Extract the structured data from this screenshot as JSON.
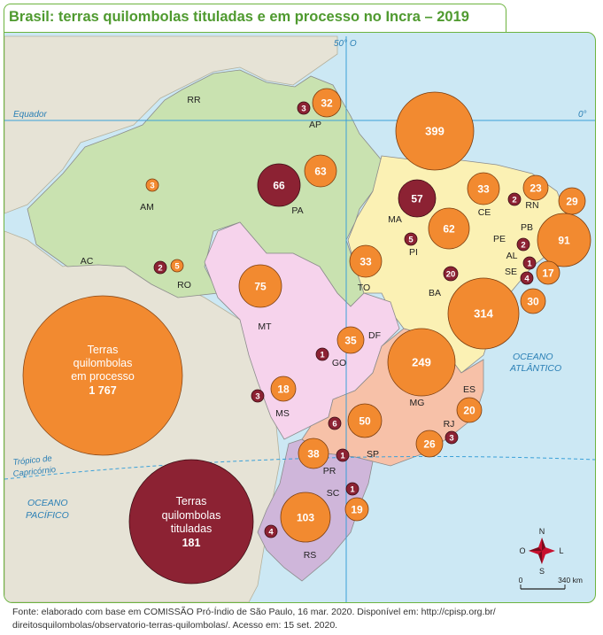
{
  "title": "Brasil: terras quilombolas tituladas e em processo no Incra – 2019",
  "colors": {
    "ocean": "#cce8f4",
    "neighbors": "#e6e3d6",
    "north": "#c9e2b0",
    "northeast": "#fbf1b4",
    "centerwest": "#f6d3ec",
    "southeast": "#f7c1a8",
    "south": "#cfb6da",
    "processo": "#f28a30",
    "titulada": "#8c2233"
  },
  "lines": {
    "equator_label": "Equador",
    "equator_degree": "0°",
    "meridian_label": "50° O",
    "tropic_label_1": "Trópico de",
    "tropic_label_2": "Capricórnio"
  },
  "oceans": {
    "atlantic_1": "OCEANO",
    "atlantic_2": "ATLÂNTICO",
    "pacific_1": "OCEANO",
    "pacific_2": "PACÍFICO"
  },
  "states": [
    {
      "id": "RR",
      "label": "RR"
    },
    {
      "id": "AP",
      "label": "AP"
    },
    {
      "id": "AM",
      "label": "AM"
    },
    {
      "id": "PA",
      "label": "PA"
    },
    {
      "id": "AC",
      "label": "AC"
    },
    {
      "id": "RO",
      "label": "RO"
    },
    {
      "id": "TO",
      "label": "TO"
    },
    {
      "id": "MA",
      "label": "MA"
    },
    {
      "id": "PI",
      "label": "PI"
    },
    {
      "id": "CE",
      "label": "CE"
    },
    {
      "id": "RN",
      "label": "RN"
    },
    {
      "id": "PB",
      "label": "PB"
    },
    {
      "id": "PE",
      "label": "PE"
    },
    {
      "id": "AL",
      "label": "AL"
    },
    {
      "id": "SE",
      "label": "SE"
    },
    {
      "id": "BA",
      "label": "BA"
    },
    {
      "id": "MT",
      "label": "MT"
    },
    {
      "id": "GO",
      "label": "GO"
    },
    {
      "id": "DF",
      "label": "DF"
    },
    {
      "id": "MS",
      "label": "MS"
    },
    {
      "id": "MG",
      "label": "MG"
    },
    {
      "id": "ES",
      "label": "ES"
    },
    {
      "id": "RJ",
      "label": "RJ"
    },
    {
      "id": "SP",
      "label": "SP"
    },
    {
      "id": "PR",
      "label": "PR"
    },
    {
      "id": "SC",
      "label": "SC"
    },
    {
      "id": "RS",
      "label": "RS"
    }
  ],
  "circles": [
    {
      "state": "AP",
      "kind": "processo",
      "value": 32
    },
    {
      "state": "AP",
      "kind": "titulada",
      "value": 3
    },
    {
      "state": "PA",
      "kind": "processo",
      "value": 63
    },
    {
      "state": "PA",
      "kind": "titulada",
      "value": 66
    },
    {
      "state": "AM",
      "kind": "processo",
      "value": 3
    },
    {
      "state": "RO",
      "kind": "processo",
      "value": 5
    },
    {
      "state": "RO",
      "kind": "titulada",
      "value": 2
    },
    {
      "state": "TO",
      "kind": "processo",
      "value": 33
    },
    {
      "state": "MA",
      "kind": "processo",
      "value": 399
    },
    {
      "state": "MA",
      "kind": "titulada",
      "value": 57
    },
    {
      "state": "PI",
      "kind": "processo",
      "value": 62
    },
    {
      "state": "PI",
      "kind": "titulada",
      "value": 5
    },
    {
      "state": "CE",
      "kind": "processo",
      "value": 33
    },
    {
      "state": "RN",
      "kind": "processo",
      "value": 23
    },
    {
      "state": "RN",
      "kind": "titulada",
      "value": 2
    },
    {
      "state": "PB",
      "kind": "processo",
      "value": 29
    },
    {
      "state": "PE",
      "kind": "processo",
      "value": 91
    },
    {
      "state": "PE",
      "kind": "titulada",
      "value": 2
    },
    {
      "state": "AL",
      "kind": "processo",
      "value": 17
    },
    {
      "state": "AL",
      "kind": "titulada",
      "value": 1
    },
    {
      "state": "SE",
      "kind": "processo",
      "value": 30
    },
    {
      "state": "SE",
      "kind": "titulada",
      "value": 4
    },
    {
      "state": "BA",
      "kind": "processo",
      "value": 314
    },
    {
      "state": "BA",
      "kind": "titulada",
      "value": 20
    },
    {
      "state": "MT",
      "kind": "processo",
      "value": 75
    },
    {
      "state": "GO",
      "kind": "processo",
      "value": 35
    },
    {
      "state": "GO",
      "kind": "titulada",
      "value": 1
    },
    {
      "state": "MS",
      "kind": "processo",
      "value": 18
    },
    {
      "state": "MS",
      "kind": "titulada",
      "value": 3
    },
    {
      "state": "MG",
      "kind": "processo",
      "value": 249
    },
    {
      "state": "MG",
      "kind": "titulada",
      "value": 6
    },
    {
      "state": "MG",
      "kind": "processo",
      "value": 50
    },
    {
      "state": "ES",
      "kind": "processo",
      "value": 20
    },
    {
      "state": "RJ",
      "kind": "processo",
      "value": 26
    },
    {
      "state": "RJ",
      "kind": "titulada",
      "value": 3
    },
    {
      "state": "PR",
      "kind": "processo",
      "value": 38
    },
    {
      "state": "SP",
      "kind": "titulada",
      "value": 1
    },
    {
      "state": "SC",
      "kind": "titulada",
      "value": 1
    },
    {
      "state": "SC",
      "kind": "processo",
      "value": 19
    },
    {
      "state": "RS",
      "kind": "processo",
      "value": 103
    },
    {
      "state": "RS",
      "kind": "titulada",
      "value": 4
    }
  ],
  "legend": {
    "processo": {
      "line1": "Terras",
      "line2": "quilombolas",
      "line3": "em processo",
      "value": "1 767"
    },
    "titulada": {
      "line1": "Terras",
      "line2": "quilombolas",
      "line3": "tituladas",
      "value": "181"
    }
  },
  "compass": {
    "n": "N",
    "s": "S",
    "l": "L",
    "o": "O"
  },
  "scale": {
    "start": "0",
    "end": "340 km"
  },
  "source": {
    "line1": "Fonte: elaborado com base em COMISSÃO Pró-Índio de São Paulo, 16 mar. 2020. Disponível em: http://cpisp.org.br/",
    "line2": "direitosquilombolas/observatorio-terras-quilombolas/. Acesso em: 15 set. 2020."
  }
}
